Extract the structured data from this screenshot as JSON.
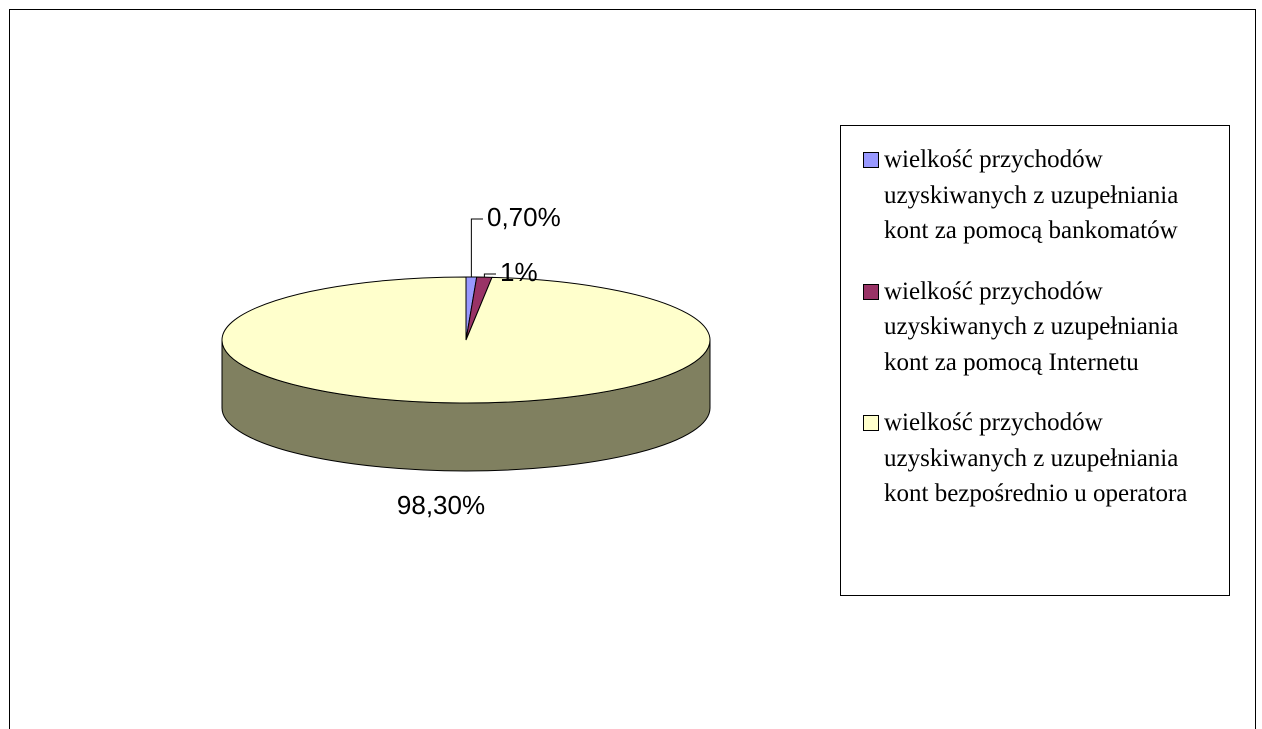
{
  "chart_data": {
    "type": "pie3d",
    "categories": [
      "wielkość przychodów uzyskiwanych z uzupełniania kont za pomocą bankomatów",
      "wielkość przychodów uzyskiwanych z uzupełniania kont za pomocą Internetu",
      "wielkość przychodów uzyskiwanych z uzupełniania kont bezpośrednio u operatora"
    ],
    "values": [
      0.7,
      1,
      98.3
    ],
    "value_labels": [
      "0,70%",
      "1%",
      "98,30%"
    ],
    "colors": [
      "#9999ff",
      "#993366",
      "#ffffcc"
    ],
    "side_color": "#808060",
    "legend": "right"
  }
}
